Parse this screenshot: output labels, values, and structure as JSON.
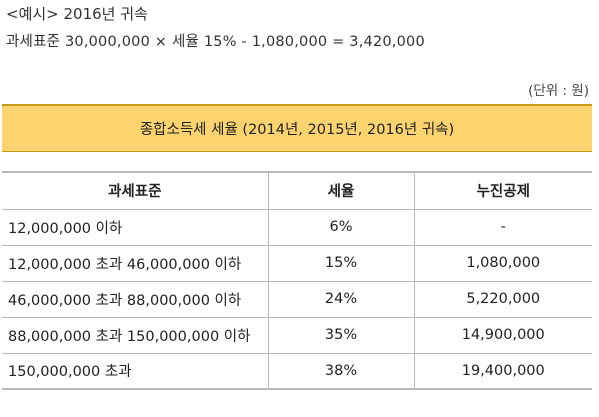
{
  "example": {
    "title": "<예시> 2016년 귀속",
    "formula": "과세표준 30,000,000 × 세율 15% - 1,080,000 = 3,420,000"
  },
  "unit_note": "(단위 : 원)",
  "table": {
    "title": "종합소득세 세율 (2014년, 2015년, 2016년 귀속)",
    "headers": {
      "base": "과세표준",
      "rate": "세율",
      "deduction": "누진공제"
    },
    "rows": [
      {
        "base": "12,000,000 이하",
        "rate": "6%",
        "deduction": "-"
      },
      {
        "base": "12,000,000 초과 46,000,000 이하",
        "rate": "15%",
        "deduction": "1,080,000"
      },
      {
        "base": "46,000,000 초과 88,000,000 이하",
        "rate": "24%",
        "deduction": "5,220,000"
      },
      {
        "base": "88,000,000 초과 150,000,000 이하",
        "rate": "35%",
        "deduction": "14,900,000"
      },
      {
        "base": "150,000,000 초과",
        "rate": "38%",
        "deduction": "19,400,000"
      }
    ]
  }
}
